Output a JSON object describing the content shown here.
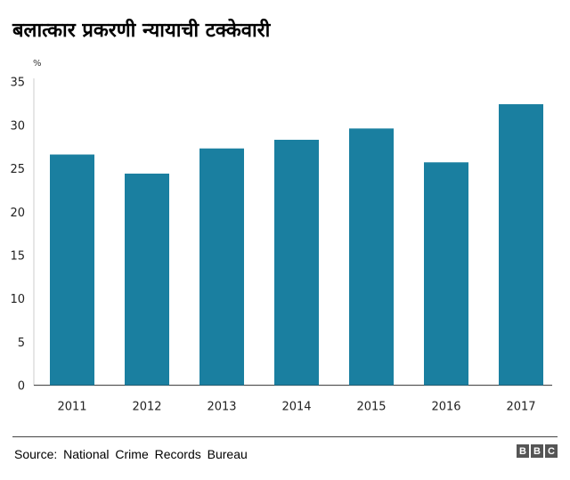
{
  "chart_data": {
    "type": "bar",
    "title": "बलात्कार प्रकरणी न्यायाची टक्केवारी",
    "ylabel": "%",
    "xlabel": "",
    "categories": [
      "2011",
      "2012",
      "2013",
      "2014",
      "2015",
      "2016",
      "2017"
    ],
    "values": [
      26.6,
      24.4,
      27.3,
      28.3,
      29.6,
      25.7,
      32.4
    ],
    "ylim": [
      0,
      35
    ],
    "yticks": [
      0,
      5,
      10,
      15,
      20,
      25,
      30,
      35
    ],
    "grid": false,
    "bar_color": "#1a7fa0"
  },
  "footer": {
    "source": "Source: National Crime Records Bureau",
    "logo": [
      "B",
      "B",
      "C"
    ]
  }
}
